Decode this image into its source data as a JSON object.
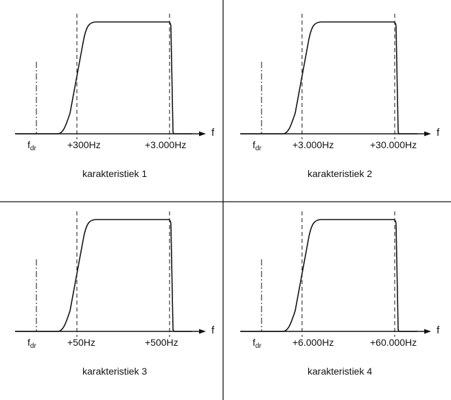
{
  "axis_symbol": "f",
  "fdr": {
    "main": "f",
    "sub": "dr"
  },
  "panels": [
    {
      "caption": "karakteristiek 1",
      "low_label": "+300Hz",
      "high_label": "+3.000Hz"
    },
    {
      "caption": "karakteristiek 2",
      "low_label": "+3.000Hz",
      "high_label": "+30.000Hz"
    },
    {
      "caption": "karakteristiek 3",
      "low_label": "+50Hz",
      "high_label": "+500Hz"
    },
    {
      "caption": "karakteristiek 4",
      "low_label": "+6.000Hz",
      "high_label": "+60.000Hz"
    }
  ]
}
